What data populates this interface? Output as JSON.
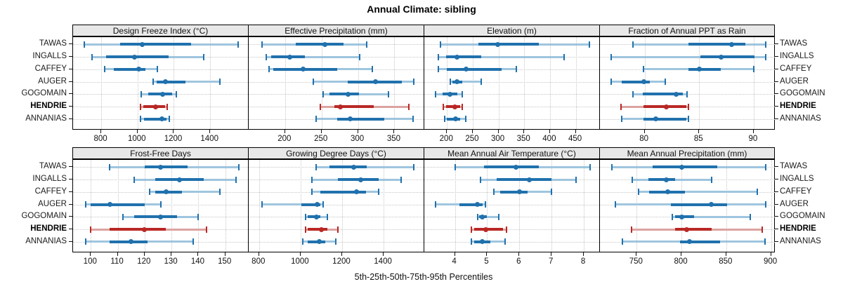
{
  "title": "Annual Climate: sibling",
  "caption": "5th-25th-50th-75th-95th Percentiles",
  "row_labels": [
    "TAWAS",
    "INGALLS",
    "CAFFEY",
    "AUGER",
    "GOGOMAIN",
    "HENDRIE",
    "ANNANIAS"
  ],
  "highlight_row": "HENDRIE",
  "colors": {
    "blue": "#2071ad",
    "blue_light": "#9fc5de",
    "red": "#b92824",
    "red_light": "#dba3a0",
    "strip_bg": "#e8e8e8",
    "panel_border": "#000000",
    "grid": "#c6c6c6",
    "text": "#111111"
  },
  "chart_data": {
    "type": "dot-interval",
    "description": "Trellis of 8 panels; horizontal percentile whiskers (5th-25th-50th-75th-95th) per station; thin light segment 5th-95th, thick solid segment 25th-75th, dot at median; HENDRIE highlighted in red",
    "percentiles": [
      5,
      25,
      50,
      75,
      95
    ],
    "rows": [
      "TAWAS",
      "INGALLS",
      "CAFFEY",
      "AUGER",
      "GOGOMAIN",
      "HENDRIE",
      "ANNANIAS"
    ],
    "highlight_row": "HENDRIE",
    "grid": "dotted",
    "legend_position": "none",
    "panels": [
      {
        "label": "Design Freeze Index (°C)",
        "grid_row": 0,
        "grid_col": 0,
        "xlim": [
          645,
          1612
        ],
        "ticks": [
          800,
          1000,
          1200,
          1400
        ],
        "series": [
          {
            "name": "TAWAS",
            "values": [
              705,
              905,
              1025,
              1295,
              1555
            ]
          },
          {
            "name": "INGALLS",
            "values": [
              750,
              825,
              985,
              1170,
              1365
            ]
          },
          {
            "name": "CAFFEY",
            "values": [
              820,
              870,
              1005,
              1045,
              1110
            ]
          },
          {
            "name": "AUGER",
            "values": [
              1085,
              1105,
              1155,
              1265,
              1455
            ]
          },
          {
            "name": "GOGOMAIN",
            "values": [
              1020,
              1060,
              1140,
              1190,
              1215
            ]
          },
          {
            "name": "HENDRIE",
            "values": [
              1015,
              1030,
              1100,
              1150,
              1165
            ]
          },
          {
            "name": "ANNANIAS",
            "values": [
              1015,
              1035,
              1135,
              1160,
              1175
            ]
          }
        ]
      },
      {
        "label": "Effective Precipitation (mm)",
        "grid_row": 0,
        "grid_col": 1,
        "xlim": [
          150,
          391
        ],
        "ticks": [
          200,
          250,
          300,
          350
        ],
        "series": [
          {
            "name": "TAWAS",
            "values": [
              168,
              215,
              255,
              280,
              312
            ]
          },
          {
            "name": "INGALLS",
            "values": [
              174,
              181,
              206,
              227,
              302
            ]
          },
          {
            "name": "CAFFEY",
            "values": [
              178,
              184,
              225,
              271,
              320
            ]
          },
          {
            "name": "AUGER",
            "values": [
              239,
              286,
              324,
              360,
              377
            ]
          },
          {
            "name": "GOGOMAIN",
            "values": [
              252,
              261,
              286,
              301,
              342
            ]
          },
          {
            "name": "HENDRIE",
            "values": [
              248,
              268,
              276,
              322,
              370
            ]
          },
          {
            "name": "ANNANIAS",
            "values": [
              243,
              271,
              289,
              336,
              376
            ]
          }
        ]
      },
      {
        "label": "Elevation (m)",
        "grid_row": 0,
        "grid_col": 2,
        "xlim": [
          156,
          497
        ],
        "ticks": [
          200,
          250,
          300,
          350,
          400,
          450
        ],
        "series": [
          {
            "name": "TAWAS",
            "values": [
              188,
              261,
              298,
              378,
              477
            ]
          },
          {
            "name": "INGALLS",
            "values": [
              183,
              198,
              220,
              267,
              428
            ]
          },
          {
            "name": "CAFFEY",
            "values": [
              183,
              200,
              237,
              306,
              335
            ]
          },
          {
            "name": "AUGER",
            "values": [
              206,
              211,
              220,
              230,
              267
            ]
          },
          {
            "name": "GOGOMAIN",
            "values": [
              178,
              191,
              206,
              220,
              230
            ]
          },
          {
            "name": "HENDRIE",
            "values": [
              193,
              198,
              215,
              226,
              230
            ]
          },
          {
            "name": "ANNANIAS",
            "values": [
              195,
              200,
              217,
              226,
              236
            ]
          }
        ]
      },
      {
        "label": "Fraction of Annual PPT as Rain",
        "grid_row": 0,
        "grid_col": 3,
        "xlim": [
          75.9,
          92.0
        ],
        "ticks": [
          80,
          85,
          90
        ],
        "series": [
          {
            "name": "TAWAS",
            "values": [
              78.9,
              84.0,
              88.0,
              89.2,
              91.1
            ]
          },
          {
            "name": "INGALLS",
            "values": [
              76.9,
              85.1,
              87.0,
              90.1,
              91.1
            ]
          },
          {
            "name": "CAFFEY",
            "values": [
              79.9,
              84.0,
              85.0,
              87.0,
              90.0
            ]
          },
          {
            "name": "AUGER",
            "values": [
              76.9,
              77.9,
              79.9,
              80.5,
              81.9
            ]
          },
          {
            "name": "GOGOMAIN",
            "values": [
              78.9,
              79.8,
              82.9,
              83.5,
              83.9
            ]
          },
          {
            "name": "HENDRIE",
            "values": [
              77.8,
              79.9,
              82.0,
              83.8,
              84.0
            ]
          },
          {
            "name": "ANNANIAS",
            "values": [
              77.9,
              79.9,
              81.0,
              83.8,
              84.0
            ]
          }
        ]
      },
      {
        "label": "Frost-Free Days",
        "grid_row": 1,
        "grid_col": 0,
        "xlim": [
          93.4,
          158.7
        ],
        "ticks": [
          100,
          110,
          120,
          130,
          140,
          150
        ],
        "series": [
          {
            "name": "TAWAS",
            "values": [
              107,
              120,
              126,
              136,
              155
            ]
          },
          {
            "name": "INGALLS",
            "values": [
              116,
              124,
              133,
              142,
              154
            ]
          },
          {
            "name": "CAFFEY",
            "values": [
              122,
              124,
              128,
              134,
              148
            ]
          },
          {
            "name": "AUGER",
            "values": [
              98,
              100,
              107,
              120,
              126
            ]
          },
          {
            "name": "GOGOMAIN",
            "values": [
              112,
              116,
              126,
              132,
              140
            ]
          },
          {
            "name": "HENDRIE",
            "values": [
              100,
              107,
              120,
              128,
              143
            ]
          },
          {
            "name": "ANNANIAS",
            "values": [
              98,
              107,
              115,
              121,
              138
            ]
          }
        ]
      },
      {
        "label": "Growing Degree Days (°C)",
        "grid_row": 1,
        "grid_col": 1,
        "xlim": [
          750,
          1596
        ],
        "ticks": [
          800,
          1000,
          1200,
          1400
        ],
        "series": [
          {
            "name": "TAWAS",
            "values": [
              1075,
              1140,
              1255,
              1320,
              1545
            ]
          },
          {
            "name": "INGALLS",
            "values": [
              1055,
              1180,
              1290,
              1375,
              1485
            ]
          },
          {
            "name": "CAFFEY",
            "values": [
              1055,
              1095,
              1270,
              1315,
              1375
            ]
          },
          {
            "name": "AUGER",
            "values": [
              815,
              1005,
              1080,
              1095,
              1110
            ]
          },
          {
            "name": "GOGOMAIN",
            "values": [
              1025,
              1035,
              1075,
              1095,
              1130
            ]
          },
          {
            "name": "HENDRIE",
            "values": [
              1025,
              1035,
              1100,
              1130,
              1180
            ]
          },
          {
            "name": "ANNANIAS",
            "values": [
              1010,
              1035,
              1090,
              1120,
              1170
            ]
          }
        ]
      },
      {
        "label": "Mean Annual Air Temperature (°C)",
        "grid_row": 1,
        "grid_col": 2,
        "xlim": [
          3.05,
          8.5
        ],
        "ticks": [
          4,
          5,
          6,
          7,
          8
        ],
        "series": [
          {
            "name": "TAWAS",
            "values": [
              4.0,
              4.9,
              5.9,
              6.6,
              8.2
            ]
          },
          {
            "name": "INGALLS",
            "values": [
              4.8,
              5.3,
              6.3,
              7.0,
              7.75
            ]
          },
          {
            "name": "CAFFEY",
            "values": [
              5.2,
              5.4,
              6.0,
              6.25,
              7.0
            ]
          },
          {
            "name": "AUGER",
            "values": [
              3.4,
              4.15,
              4.7,
              4.85,
              4.95
            ]
          },
          {
            "name": "GOGOMAIN",
            "values": [
              4.7,
              4.75,
              4.85,
              5.0,
              5.35
            ]
          },
          {
            "name": "HENDRIE",
            "values": [
              4.5,
              4.6,
              4.95,
              5.5,
              5.6
            ]
          },
          {
            "name": "ANNANIAS",
            "values": [
              4.5,
              4.6,
              4.85,
              5.1,
              5.55
            ]
          }
        ]
      },
      {
        "label": "Mean Annual Precipitation (mm)",
        "grid_row": 1,
        "grid_col": 3,
        "xlim": [
          709,
          905
        ],
        "ticks": [
          750,
          800,
          850,
          900
        ],
        "series": [
          {
            "name": "TAWAS",
            "values": [
              722,
              768,
              800,
              840,
              894
            ]
          },
          {
            "name": "INGALLS",
            "values": [
              745,
              763,
              783,
              793,
              834
            ]
          },
          {
            "name": "CAFFEY",
            "values": [
              752,
              764,
              785,
              804,
              885
            ]
          },
          {
            "name": "AUGER",
            "values": [
              726,
              788,
              833,
              851,
              894
            ]
          },
          {
            "name": "GOGOMAIN",
            "values": [
              790,
              793,
              800,
              814,
              877
            ]
          },
          {
            "name": "HENDRIE",
            "values": [
              744,
              793,
              806,
              834,
              890
            ]
          },
          {
            "name": "ANNANIAS",
            "values": [
              734,
              798,
              809,
              843,
              893
            ]
          }
        ]
      }
    ]
  }
}
